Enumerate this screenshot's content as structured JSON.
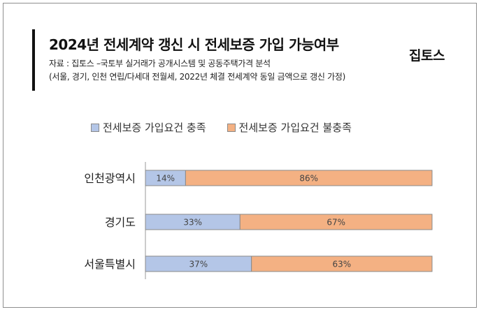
{
  "header": {
    "title": "2024년 전세계약 갱신 시 전세보증 가입 가능여부",
    "source": "자료 : 집토스 –국토부 실거래가 공개시스템 및 공동주택가격 분석",
    "note": "(서울, 경기, 인천 연립/다세대 전월세, 2022년 체결 전세계약 동일 금액으로 갱신 가정)",
    "logo": "집토스"
  },
  "chart_data": {
    "type": "bar",
    "orientation": "horizontal",
    "stacked": true,
    "percent_stacked": true,
    "categories": [
      "인천광역시",
      "경기도",
      "서울특별시"
    ],
    "series": [
      {
        "name": "전세보증 가입요건 충족",
        "values": [
          14,
          33,
          37
        ],
        "labels": [
          "14%",
          "33%",
          "37%"
        ],
        "color": "#b4c6e7"
      },
      {
        "name": "전세보증 가입요건 불충족",
        "values": [
          86,
          67,
          63
        ],
        "labels": [
          "86%",
          "67%",
          "63%"
        ],
        "color": "#f4b183"
      }
    ],
    "xlim": [
      0,
      100
    ],
    "legend": "top",
    "grid": false
  }
}
